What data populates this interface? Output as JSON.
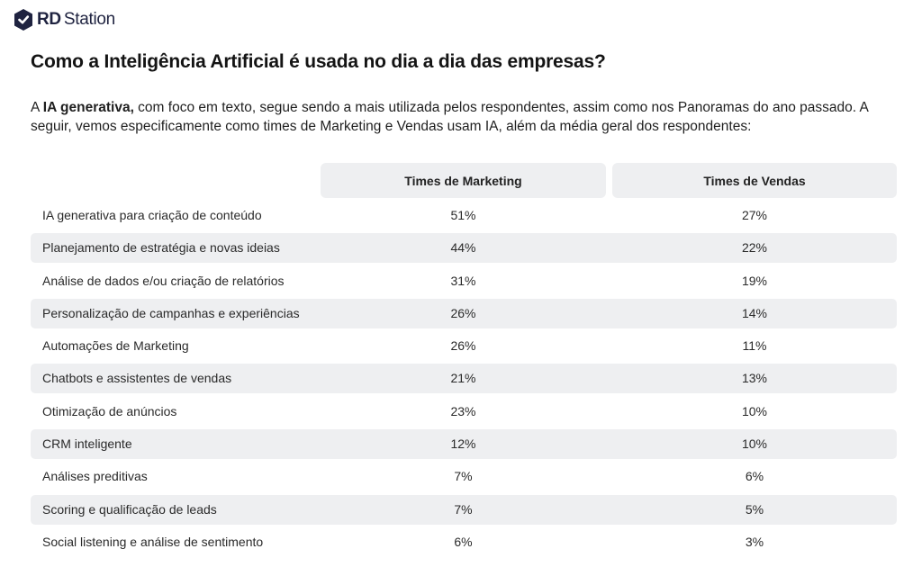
{
  "brand": {
    "rd": "RD",
    "station": "Station"
  },
  "title": "Como a Inteligência Artificial é usada no dia a dia das empresas?",
  "intro": {
    "prefix": "A ",
    "bold": "IA generativa,",
    "rest": " com foco em texto, segue sendo a mais utilizada pelos respondentes, assim como nos Panoramas do ano passado. A seguir, vemos especificamente como times de Marketing e Vendas usam IA, além da média geral dos respondentes:"
  },
  "table": {
    "headers": {
      "marketing": "Times de Marketing",
      "vendas": "Times de Vendas"
    },
    "rows": [
      {
        "label": "IA generativa para criação de conteúdo",
        "marketing": "51%",
        "vendas": "27%"
      },
      {
        "label": "Planejamento de estratégia e novas ideias",
        "marketing": "44%",
        "vendas": "22%"
      },
      {
        "label": "Análise de dados e/ou criação de relatórios",
        "marketing": "31%",
        "vendas": "19%"
      },
      {
        "label": "Personalização de campanhas e experiências",
        "marketing": "26%",
        "vendas": "14%"
      },
      {
        "label": "Automações de Marketing",
        "marketing": "26%",
        "vendas": "11%"
      },
      {
        "label": "Chatbots e assistentes de vendas",
        "marketing": "21%",
        "vendas": "13%"
      },
      {
        "label": "Otimização de anúncios",
        "marketing": "23%",
        "vendas": "10%"
      },
      {
        "label": "CRM inteligente",
        "marketing": "12%",
        "vendas": "10%"
      },
      {
        "label": "Análises preditivas",
        "marketing": "7%",
        "vendas": "6%"
      },
      {
        "label": "Scoring e qualificação de leads",
        "marketing": "7%",
        "vendas": "5%"
      },
      {
        "label": "Social listening e análise de sentimento",
        "marketing": "6%",
        "vendas": "3%"
      }
    ]
  },
  "colors": {
    "brand_navy": "#1f2340",
    "row_stripe": "#eeeff1",
    "text": "#1a1a1a"
  }
}
